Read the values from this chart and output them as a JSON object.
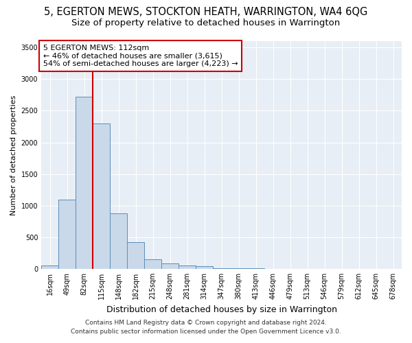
{
  "title": "5, EGERTON MEWS, STOCKTON HEATH, WARRINGTON, WA4 6QG",
  "subtitle": "Size of property relative to detached houses in Warrington",
  "xlabel": "Distribution of detached houses by size in Warrington",
  "ylabel": "Number of detached properties",
  "categories": [
    "16sqm",
    "49sqm",
    "82sqm",
    "115sqm",
    "148sqm",
    "182sqm",
    "215sqm",
    "248sqm",
    "281sqm",
    "314sqm",
    "347sqm",
    "380sqm",
    "413sqm",
    "446sqm",
    "479sqm",
    "513sqm",
    "546sqm",
    "579sqm",
    "612sqm",
    "645sqm",
    "678sqm"
  ],
  "values": [
    50,
    1100,
    2720,
    2300,
    880,
    420,
    155,
    90,
    55,
    40,
    15,
    8,
    5,
    3,
    2,
    0,
    0,
    0,
    0,
    0,
    0
  ],
  "bar_color": "#c9d9ea",
  "bar_edge_color": "#5b8db8",
  "vline_x_index": 2,
  "vline_color": "#cc0000",
  "annotation_text": "5 EGERTON MEWS: 112sqm\n← 46% of detached houses are smaller (3,615)\n54% of semi-detached houses are larger (4,223) →",
  "annotation_box_facecolor": "#ffffff",
  "annotation_box_edgecolor": "#cc0000",
  "ylim": [
    0,
    3600
  ],
  "yticks": [
    0,
    500,
    1000,
    1500,
    2000,
    2500,
    3000,
    3500
  ],
  "fig_bg_color": "#ffffff",
  "plot_bg_color": "#e8eef5",
  "grid_color": "#ffffff",
  "footer_line1": "Contains HM Land Registry data © Crown copyright and database right 2024.",
  "footer_line2": "Contains public sector information licensed under the Open Government Licence v3.0.",
  "title_fontsize": 10.5,
  "subtitle_fontsize": 9.5,
  "xlabel_fontsize": 9,
  "ylabel_fontsize": 8,
  "tick_fontsize": 7,
  "annotation_fontsize": 8,
  "footer_fontsize": 6.5
}
